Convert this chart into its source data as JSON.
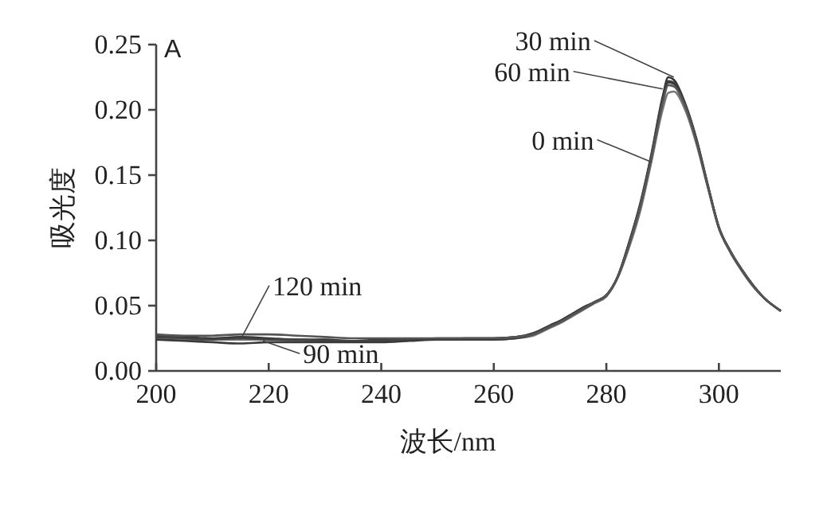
{
  "chart_data": {
    "type": "line",
    "xlabel": "波长/nm",
    "ylabel": "吸光度",
    "x": [
      200,
      205,
      210,
      215,
      220,
      225,
      230,
      235,
      240,
      245,
      250,
      255,
      260,
      264,
      267,
      270,
      272,
      274,
      276,
      278,
      280,
      282,
      284,
      286,
      288,
      290,
      291,
      292,
      294,
      296,
      298,
      300,
      302,
      304,
      306,
      308,
      311
    ],
    "series": [
      {
        "color": "#777777",
        "values": [
          0.025,
          0.024,
          0.024,
          0.024,
          0.024,
          0.023,
          0.023,
          0.023,
          0.023,
          0.024,
          0.024,
          0.024,
          0.024,
          0.025,
          0.027,
          0.033,
          0.037,
          0.042,
          0.047,
          0.052,
          0.057,
          0.071,
          0.094,
          0.122,
          0.16,
          0.2,
          0.213,
          0.214,
          0.2,
          0.174,
          0.141,
          0.109,
          0.091,
          0.077,
          0.065,
          0.056,
          0.046
        ]
      },
      {
        "color": "#333333",
        "values": [
          0.027,
          0.026,
          0.025,
          0.026,
          0.025,
          0.024,
          0.024,
          0.023,
          0.024,
          0.024,
          0.025,
          0.025,
          0.025,
          0.026,
          0.029,
          0.035,
          0.039,
          0.044,
          0.049,
          0.053,
          0.058,
          0.072,
          0.098,
          0.128,
          0.166,
          0.21,
          0.225,
          0.223,
          0.205,
          0.178,
          0.143,
          0.11,
          0.092,
          0.078,
          0.066,
          0.056,
          0.046
        ]
      },
      {
        "color": "#444444",
        "values": [
          0.026,
          0.025,
          0.024,
          0.025,
          0.024,
          0.024,
          0.023,
          0.023,
          0.023,
          0.024,
          0.024,
          0.025,
          0.025,
          0.026,
          0.028,
          0.034,
          0.038,
          0.043,
          0.048,
          0.053,
          0.058,
          0.072,
          0.097,
          0.127,
          0.165,
          0.208,
          0.222,
          0.221,
          0.204,
          0.177,
          0.143,
          0.11,
          0.092,
          0.078,
          0.066,
          0.056,
          0.046
        ]
      },
      {
        "color": "#3a3a3a",
        "values": [
          0.024,
          0.023,
          0.022,
          0.021,
          0.022,
          0.022,
          0.022,
          0.022,
          0.022,
          0.023,
          0.024,
          0.024,
          0.024,
          0.025,
          0.028,
          0.034,
          0.038,
          0.043,
          0.048,
          0.053,
          0.058,
          0.072,
          0.097,
          0.126,
          0.164,
          0.207,
          0.221,
          0.22,
          0.204,
          0.177,
          0.142,
          0.11,
          0.092,
          0.078,
          0.066,
          0.056,
          0.046
        ]
      },
      {
        "color": "#555555",
        "values": [
          0.028,
          0.027,
          0.027,
          0.028,
          0.028,
          0.027,
          0.026,
          0.025,
          0.025,
          0.025,
          0.025,
          0.025,
          0.025,
          0.026,
          0.028,
          0.034,
          0.038,
          0.043,
          0.048,
          0.053,
          0.058,
          0.072,
          0.096,
          0.126,
          0.163,
          0.205,
          0.219,
          0.218,
          0.203,
          0.176,
          0.142,
          0.11,
          0.092,
          0.078,
          0.066,
          0.056,
          0.046
        ]
      }
    ],
    "xlim": [
      200,
      311
    ],
    "xticks": [
      200,
      220,
      240,
      260,
      280,
      300
    ],
    "ylim": [
      0,
      0.25
    ],
    "yticks": [
      {
        "value": 0,
        "label": "0.00"
      },
      {
        "value": 0.05,
        "label": "0.05"
      },
      {
        "value": 0.1,
        "label": "0.10"
      },
      {
        "value": 0.15,
        "label": "0.15"
      },
      {
        "value": 0.2,
        "label": "0.20"
      },
      {
        "value": 0.25,
        "label": "0.25"
      }
    ],
    "grid": false,
    "marker": "none",
    "line_style": "solid",
    "annotations": [
      "A",
      {
        "text": "30 min",
        "x": 292,
        "y": 0.225
      },
      {
        "text": "60 min",
        "x": 290,
        "y": 0.216
      },
      {
        "text": "0 min",
        "x": 288,
        "y": 0.16
      },
      {
        "text": "120 min",
        "x": 215,
        "y": 0.024
      },
      {
        "text": "90 min",
        "x": 219,
        "y": 0.023
      }
    ]
  }
}
